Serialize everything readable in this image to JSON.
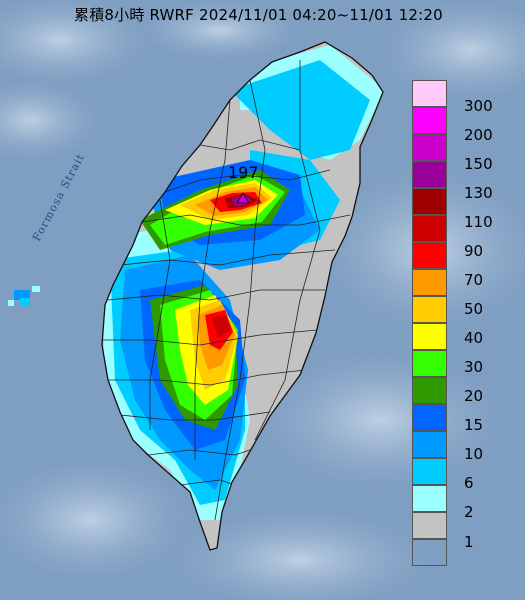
{
  "title": "累積8小時 RWRF 2024/11/01 04:20~11/01 12:20",
  "strait_label": "Formosa Strait",
  "max_marker": {
    "value": "197",
    "color": "#9a0f9f"
  },
  "legend": [
    {
      "label": "300",
      "color": "#fdcaf9"
    },
    {
      "label": "200",
      "color": "#fe00fd"
    },
    {
      "label": "150",
      "color": "#cc00cc"
    },
    {
      "label": "130",
      "color": "#990099"
    },
    {
      "label": "110",
      "color": "#9e0000"
    },
    {
      "label": "90",
      "color": "#cc0000"
    },
    {
      "label": "70",
      "color": "#fe0000"
    },
    {
      "label": "50",
      "color": "#ff9900"
    },
    {
      "label": "40",
      "color": "#ffcc00"
    },
    {
      "label": "30",
      "color": "#ffff00"
    },
    {
      "label": "20",
      "color": "#33ff00"
    },
    {
      "label": "15",
      "color": "#2f9900"
    },
    {
      "label": "10",
      "color": "#0066ff"
    },
    {
      "label": "6",
      "color": "#0099ff"
    },
    {
      "label": "2",
      "color": "#00ccff"
    },
    {
      "label": "1",
      "color": "#9bffff"
    },
    {
      "label": "",
      "color": "#c3c3c3"
    }
  ],
  "colors": {
    "sea": "#7f9fc2",
    "land_base": "#c3c3c3",
    "county_border": "#222222"
  }
}
